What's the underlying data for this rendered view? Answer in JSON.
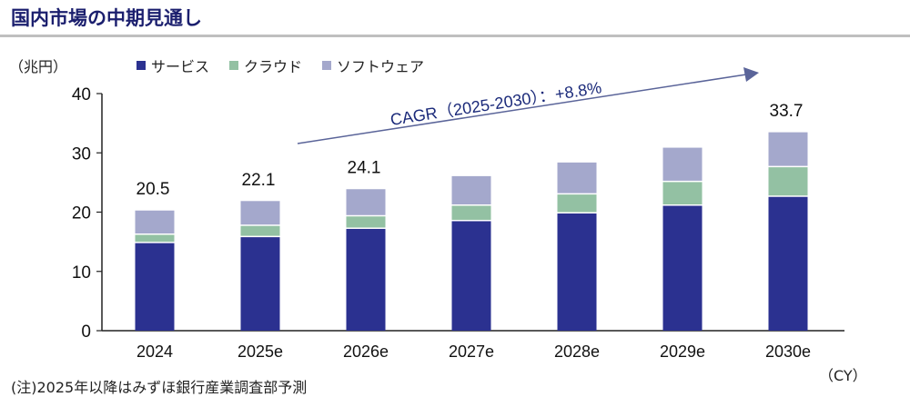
{
  "title": "国内市場の中期見通し",
  "unit_label": "（兆円）",
  "footnote": "(注)2025年以降はみずほ銀行産業調査部予測",
  "x_unit": "（CY）",
  "chart_data": {
    "type": "bar",
    "stacked": true,
    "categories": [
      "2024",
      "2025e",
      "2026e",
      "2027e",
      "2028e",
      "2029e",
      "2030e"
    ],
    "series": [
      {
        "name": "サービス",
        "color": "#2b3190",
        "values": [
          15.0,
          16.0,
          17.4,
          18.7,
          20.0,
          21.3,
          22.8
        ]
      },
      {
        "name": "クラウド",
        "color": "#93c1a3",
        "values": [
          1.4,
          1.9,
          2.1,
          2.6,
          3.2,
          4.0,
          5.0
        ]
      },
      {
        "name": "ソフトウェア",
        "color": "#a4a8cc",
        "values": [
          4.1,
          4.2,
          4.6,
          5.0,
          5.4,
          5.8,
          5.9
        ]
      }
    ],
    "total_labels": {
      "2024": "20.5",
      "2025e": "22.1",
      "2026e": "24.1",
      "2030e": "33.7"
    },
    "ylim": [
      0,
      40
    ],
    "yticks": [
      "0",
      "10",
      "20",
      "30",
      "40"
    ],
    "grid": false,
    "legend_position": "top",
    "annotation": "CAGR（2025-2030）：+8.8%",
    "annotation_color": "#5a6499"
  }
}
